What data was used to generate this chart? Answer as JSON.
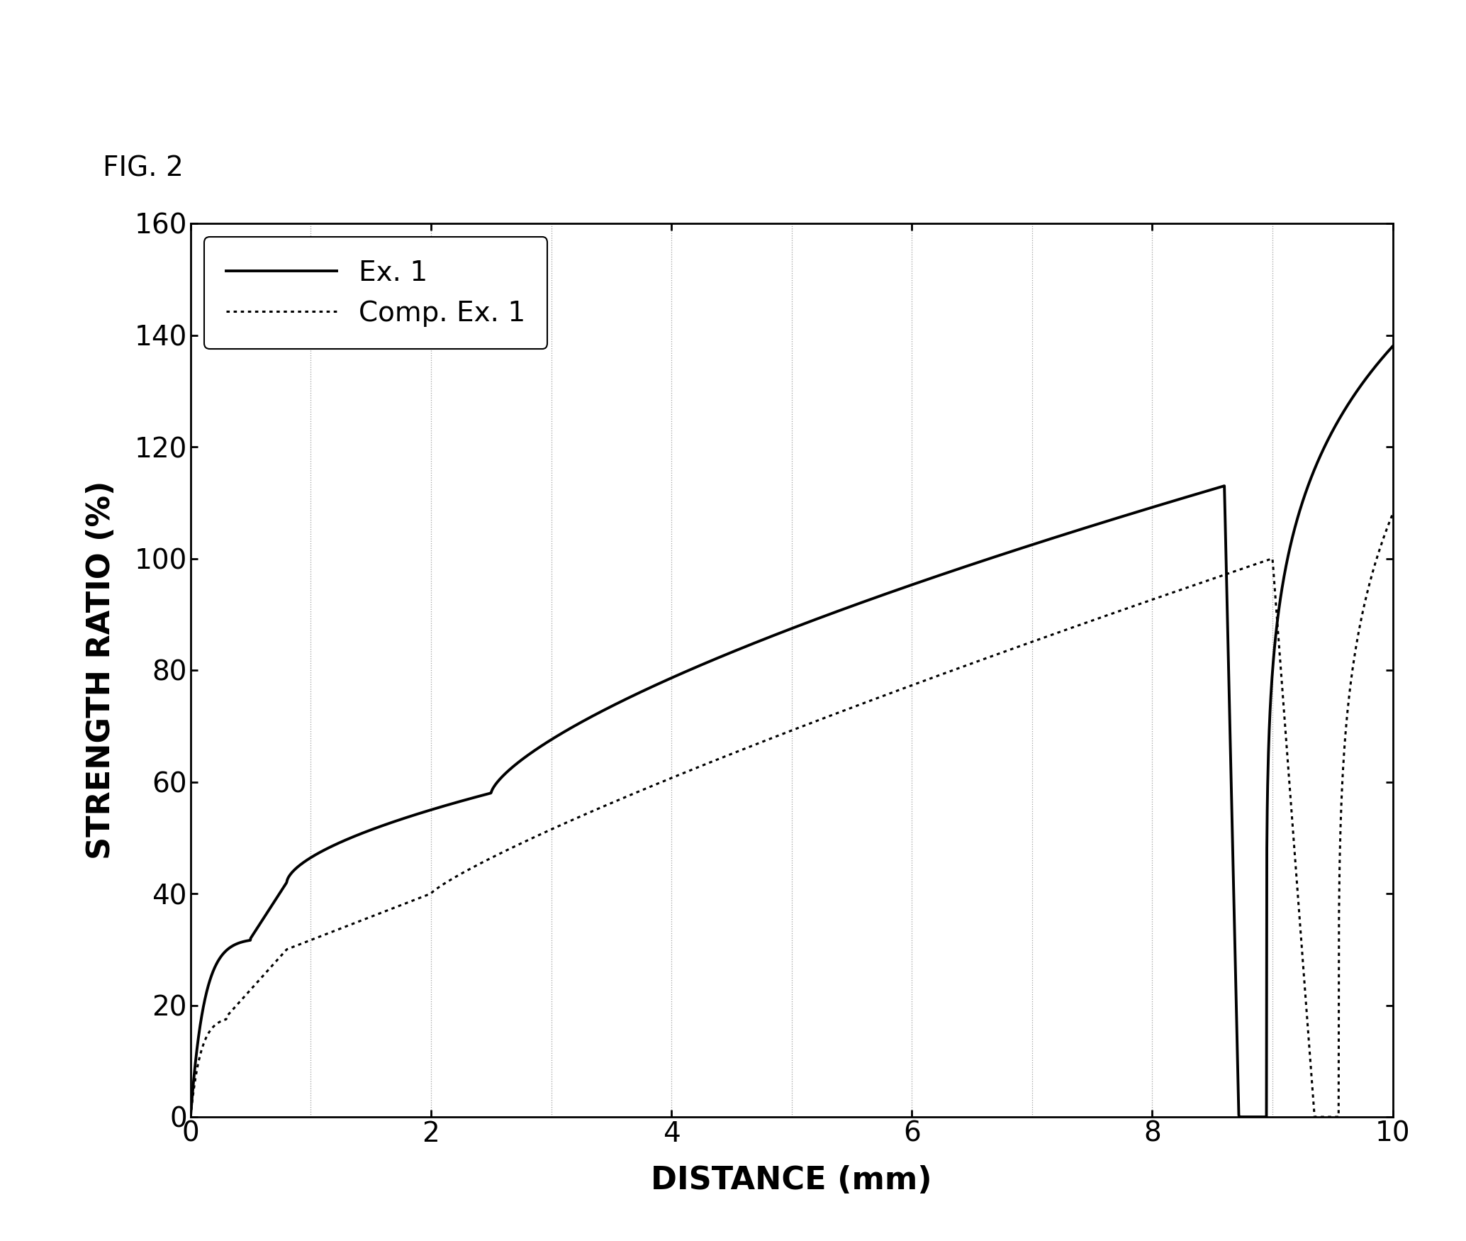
{
  "xlabel": "DISTANCE (mm)",
  "ylabel": "STRENGTH RATIO (%)",
  "xlim": [
    0,
    10
  ],
  "ylim": [
    0,
    160
  ],
  "xticks": [
    0,
    2,
    4,
    6,
    8,
    10
  ],
  "yticks": [
    0,
    20,
    40,
    60,
    80,
    100,
    120,
    140,
    160
  ],
  "grid_x_positions": [
    1,
    2,
    3,
    4,
    5,
    6,
    7,
    8,
    9,
    10
  ],
  "legend_labels": [
    "Ex. 1",
    "Comp. Ex. 1"
  ],
  "line_color": "#000000",
  "background_color": "#ffffff",
  "fig_label": "FIG. 2"
}
